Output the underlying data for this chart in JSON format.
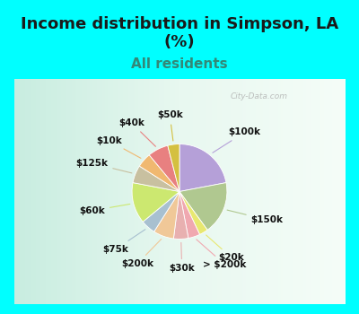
{
  "title": "Income distribution in Simpson, LA\n(%)",
  "subtitle": "All residents",
  "fig_facecolor": "#00FFFF",
  "chart_facecolor": "#d8f0e8",
  "labels": [
    "$100k",
    "$150k",
    "$20k",
    "> $200k",
    "$30k",
    "$200k",
    "$75k",
    "$60k",
    "$125k",
    "$10k",
    "$40k",
    "$50k"
  ],
  "values": [
    22,
    18,
    3,
    4,
    5,
    7,
    5,
    14,
    6,
    5,
    7,
    4
  ],
  "colors": [
    "#b5a0d8",
    "#b0c890",
    "#e8e870",
    "#f0a8b0",
    "#e8b0b0",
    "#f0c898",
    "#a8c0d0",
    "#cce870",
    "#c8c0a0",
    "#f0b870",
    "#e88080",
    "#d4c040"
  ],
  "title_fontsize": 13,
  "subtitle_fontsize": 11,
  "label_fontsize": 7.5,
  "watermark": "City-Data.com"
}
